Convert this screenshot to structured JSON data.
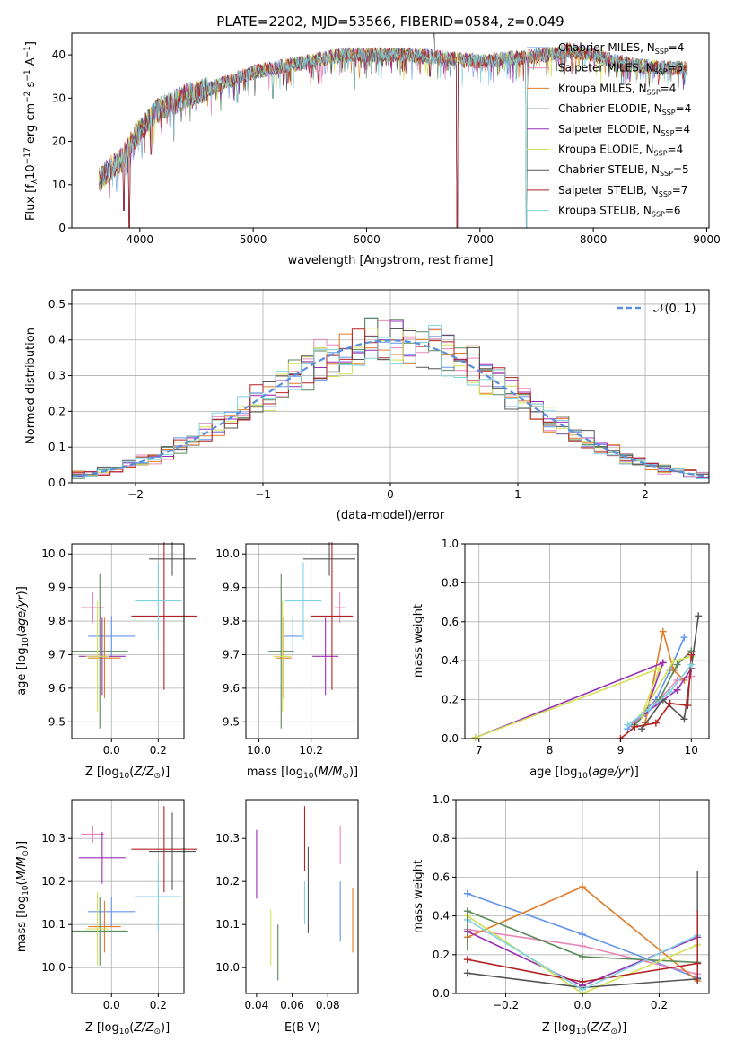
{
  "figure_title": "PLATE=2202, MJD=53566, FIBERID=0584, z=0.049",
  "colors": {
    "chabrier_miles": "#6495ED",
    "salpeter_miles": "#E986B9",
    "kroupa_miles": "#E07B27",
    "chabrier_elodie": "#5A8A5A",
    "salpeter_elodie": "#9A2FB8",
    "kroupa_elodie": "#D4E157",
    "chabrier_stelib": "#555555",
    "salpeter_stelib": "#B22222",
    "kroupa_stelib": "#7FD3E0",
    "normal_curve": "#5B8FDB",
    "grid": "#b0b0b0"
  },
  "chart_data": [
    {
      "id": "spectrum",
      "type": "line",
      "title": "PLATE=2202, MJD=53566, FIBERID=0584, z=0.049",
      "xlabel": "wavelength [Angstrom, rest frame]",
      "ylabel": "Flux [f_λ 10^-17 erg cm^-2 s^-1 A^-1]",
      "xlim": [
        3400,
        9020
      ],
      "ylim": [
        0,
        45
      ],
      "xticks": [
        "4000",
        "5000",
        "6000",
        "7000",
        "8000",
        "9000"
      ],
      "yticks": [
        "0",
        "10",
        "20",
        "30",
        "40"
      ],
      "grid": false,
      "legend_position": "top-right",
      "legend": [
        {
          "name": "Chabrier MILES",
          "ssp": "4",
          "color_key": "chabrier_miles"
        },
        {
          "name": "Salpeter MILES",
          "ssp": "5",
          "color_key": "salpeter_miles"
        },
        {
          "name": "Kroupa MILES",
          "ssp": "4",
          "color_key": "kroupa_miles"
        },
        {
          "name": "Chabrier ELODIE",
          "ssp": "4",
          "color_key": "chabrier_elodie"
        },
        {
          "name": "Salpeter ELODIE",
          "ssp": "4",
          "color_key": "salpeter_elodie"
        },
        {
          "name": "Kroupa ELODIE",
          "ssp": "4",
          "color_key": "kroupa_elodie"
        },
        {
          "name": "Chabrier STELIB",
          "ssp": "5",
          "color_key": "chabrier_stelib"
        },
        {
          "name": "Salpeter STELIB",
          "ssp": "7",
          "color_key": "salpeter_stelib"
        },
        {
          "name": "Kroupa STELIB",
          "ssp": "6",
          "color_key": "kroupa_stelib"
        }
      ],
      "continuum": [
        [
          3640,
          11
        ],
        [
          3750,
          14
        ],
        [
          3850,
          16
        ],
        [
          3950,
          21
        ],
        [
          4050,
          24
        ],
        [
          4150,
          27
        ],
        [
          4300,
          29
        ],
        [
          4450,
          31
        ],
        [
          4600,
          32
        ],
        [
          4800,
          34
        ],
        [
          5000,
          36
        ],
        [
          5200,
          37
        ],
        [
          5400,
          38
        ],
        [
          5600,
          39
        ],
        [
          5800,
          40
        ],
        [
          6000,
          40
        ],
        [
          6200,
          40
        ],
        [
          6400,
          40
        ],
        [
          6600,
          39.5
        ],
        [
          6800,
          39
        ],
        [
          7000,
          38.5
        ],
        [
          7200,
          39
        ],
        [
          7400,
          39.5
        ],
        [
          7600,
          40
        ],
        [
          7800,
          41
        ],
        [
          8000,
          40
        ],
        [
          8200,
          38.5
        ],
        [
          8400,
          37.5
        ],
        [
          8600,
          37
        ],
        [
          8800,
          37
        ],
        [
          8830,
          37
        ]
      ],
      "drops": [
        [
          3860,
          4
        ],
        [
          3905,
          0
        ],
        [
          4100,
          17
        ],
        [
          4300,
          20
        ],
        [
          4860,
          29
        ],
        [
          5175,
          30
        ],
        [
          5270,
          33
        ],
        [
          5895,
          32
        ],
        [
          6560,
          35
        ],
        [
          6800,
          0
        ],
        [
          7410,
          0
        ]
      ]
    },
    {
      "id": "residuals",
      "type": "line",
      "xlabel": "(data-model)/error",
      "ylabel": "Normed distribution",
      "xlim": [
        -2.5,
        2.5
      ],
      "ylim": [
        0,
        0.54
      ],
      "xticks": [
        "−2",
        "−1",
        "0",
        "1",
        "2"
      ],
      "yticks": [
        "0.0",
        "0.1",
        "0.2",
        "0.3",
        "0.4",
        "0.5"
      ],
      "grid": true,
      "legend_position": "top-right",
      "curve_label": "𝒩(0, 1)",
      "bin_width": 0.1,
      "bin_start": -2.5
    },
    {
      "id": "age_vs_Z",
      "type": "scatter",
      "xlabel": "Z [log10(Z/Z⊙)]",
      "ylabel": "age [log10(age/yr)]",
      "xlim": [
        -0.17,
        0.31
      ],
      "ylim": [
        9.45,
        10.03
      ],
      "xticks": [
        "0.0",
        "0.2"
      ],
      "yticks": [
        "9.5",
        "9.6",
        "9.7",
        "9.8",
        "9.9",
        "10.0"
      ],
      "grid": true,
      "points": [
        {
          "color_key": "chabrier_miles",
          "x": 0.0,
          "xerr": 0.1,
          "y": 9.755,
          "yerr": 0.06
        },
        {
          "color_key": "salpeter_miles",
          "x": -0.08,
          "xerr": 0.05,
          "y": 9.84,
          "yerr": 0.045
        },
        {
          "color_key": "kroupa_miles",
          "x": -0.03,
          "xerr": 0.07,
          "y": 9.69,
          "yerr": 0.12
        },
        {
          "color_key": "chabrier_elodie",
          "x": -0.05,
          "xerr": 0.12,
          "y": 9.71,
          "yerr": 0.23
        },
        {
          "color_key": "salpeter_elodie",
          "x": -0.04,
          "xerr": 0.1,
          "y": 9.695,
          "yerr": 0.115
        },
        {
          "color_key": "kroupa_elodie",
          "x": -0.06,
          "xerr": 0.05,
          "y": 9.695,
          "yerr": 0.165
        },
        {
          "color_key": "chabrier_stelib",
          "x": 0.26,
          "xerr": 0.1,
          "y": 9.985,
          "yerr": 0.05
        },
        {
          "color_key": "salpeter_stelib",
          "x": 0.225,
          "xerr": 0.14,
          "y": 9.815,
          "yerr": 0.22
        },
        {
          "color_key": "kroupa_stelib",
          "x": 0.2,
          "xerr": 0.1,
          "y": 9.86,
          "yerr": 0.115
        }
      ]
    },
    {
      "id": "age_vs_mass",
      "type": "scatter",
      "xlabel": "mass [log10(M/M⊙)]",
      "xlim": [
        9.95,
        10.38
      ],
      "ylim": [
        9.45,
        10.03
      ],
      "xticks": [
        "10.0",
        "10.2"
      ],
      "yticks": [
        "9.5",
        "9.6",
        "9.7",
        "9.8",
        "9.9",
        "10.0"
      ],
      "grid": true,
      "points": [
        {
          "color_key": "chabrier_miles",
          "x": 10.13,
          "xerr": 0.035,
          "y": 9.755,
          "yerr": 0.06
        },
        {
          "color_key": "salpeter_miles",
          "x": 10.31,
          "xerr": 0.02,
          "y": 9.84,
          "yerr": 0.045
        },
        {
          "color_key": "kroupa_miles",
          "x": 10.095,
          "xerr": 0.03,
          "y": 9.69,
          "yerr": 0.12
        },
        {
          "color_key": "chabrier_elodie",
          "x": 10.085,
          "xerr": 0.05,
          "y": 9.71,
          "yerr": 0.23
        },
        {
          "color_key": "salpeter_elodie",
          "x": 10.255,
          "xerr": 0.05,
          "y": 9.695,
          "yerr": 0.115
        },
        {
          "color_key": "kroupa_elodie",
          "x": 10.09,
          "xerr": 0.035,
          "y": 9.695,
          "yerr": 0.165
        },
        {
          "color_key": "chabrier_stelib",
          "x": 10.27,
          "xerr": 0.1,
          "y": 9.985,
          "yerr": 0.05
        },
        {
          "color_key": "salpeter_stelib",
          "x": 10.28,
          "xerr": 0.08,
          "y": 9.815,
          "yerr": 0.22
        },
        {
          "color_key": "kroupa_stelib",
          "x": 10.17,
          "xerr": 0.07,
          "y": 9.86,
          "yerr": 0.115
        }
      ]
    },
    {
      "id": "weight_vs_age",
      "type": "line",
      "xlabel": "age [log10(age/yr)]",
      "ylabel": "mass weight",
      "xlim": [
        6.8,
        10.25
      ],
      "ylim": [
        0,
        1
      ],
      "xticks": [
        "7",
        "8",
        "9",
        "10"
      ],
      "yticks": [
        "0.0",
        "0.2",
        "0.4",
        "0.6",
        "0.8",
        "1.0"
      ],
      "grid": true
    },
    {
      "id": "mass_vs_Z",
      "type": "scatter",
      "xlabel": "Z [log10(Z/Z⊙)]",
      "ylabel": "mass [log10(M/M⊙)]",
      "xlim": [
        -0.17,
        0.31
      ],
      "ylim": [
        9.94,
        10.39
      ],
      "xticks": [
        "0.0",
        "0.2"
      ],
      "yticks": [
        "10.0",
        "10.1",
        "10.2",
        "10.3"
      ],
      "grid": true,
      "points": [
        {
          "color_key": "chabrier_miles",
          "x": 0.0,
          "xerr": 0.1,
          "y": 10.13,
          "yerr": 0.035
        },
        {
          "color_key": "salpeter_miles",
          "x": -0.08,
          "xerr": 0.05,
          "y": 10.31,
          "yerr": 0.02
        },
        {
          "color_key": "kroupa_miles",
          "x": -0.03,
          "xerr": 0.07,
          "y": 10.095,
          "yerr": 0.06
        },
        {
          "color_key": "chabrier_elodie",
          "x": -0.05,
          "xerr": 0.12,
          "y": 10.085,
          "yerr": 0.08
        },
        {
          "color_key": "salpeter_elodie",
          "x": -0.04,
          "xerr": 0.1,
          "y": 10.255,
          "yerr": 0.06
        },
        {
          "color_key": "kroupa_elodie",
          "x": -0.06,
          "xerr": 0.05,
          "y": 10.09,
          "yerr": 0.085
        },
        {
          "color_key": "chabrier_stelib",
          "x": 0.26,
          "xerr": 0.1,
          "y": 10.27,
          "yerr": 0.09
        },
        {
          "color_key": "salpeter_stelib",
          "x": 0.225,
          "xerr": 0.14,
          "y": 10.275,
          "yerr": 0.1
        },
        {
          "color_key": "kroupa_stelib",
          "x": 0.2,
          "xerr": 0.1,
          "y": 10.165,
          "yerr": 0.08
        }
      ]
    },
    {
      "id": "mass_vs_ebv",
      "type": "scatter",
      "xlabel": "E(B-V)",
      "xlim": [
        0.034,
        0.097
      ],
      "ylim": [
        9.94,
        10.39
      ],
      "xticks": [
        "0.04",
        "0.06",
        "0.08"
      ],
      "yticks": [
        "10.0",
        "10.1",
        "10.2",
        "10.3"
      ],
      "grid": false,
      "points": [
        {
          "color_key": "chabrier_miles",
          "x": 0.087,
          "y": 10.13,
          "yerr": 0.07
        },
        {
          "color_key": "salpeter_miles",
          "x": 0.087,
          "y": 10.285,
          "yerr": 0.045
        },
        {
          "color_key": "kroupa_miles",
          "x": 0.094,
          "y": 10.11,
          "yerr": 0.075
        },
        {
          "color_key": "chabrier_elodie",
          "x": 0.052,
          "y": 10.035,
          "yerr": 0.065
        },
        {
          "color_key": "salpeter_elodie",
          "x": 0.04,
          "y": 10.24,
          "yerr": 0.08
        },
        {
          "color_key": "kroupa_elodie",
          "x": 0.048,
          "y": 10.07,
          "yerr": 0.065
        },
        {
          "color_key": "chabrier_stelib",
          "x": 0.069,
          "y": 10.18,
          "yerr": 0.1
        },
        {
          "color_key": "salpeter_stelib",
          "x": 0.067,
          "y": 10.3,
          "yerr": 0.075
        },
        {
          "color_key": "kroupa_stelib",
          "x": 0.067,
          "y": 10.15,
          "yerr": 0.05
        }
      ]
    },
    {
      "id": "weight_vs_Z",
      "type": "line",
      "xlabel": "Z [log10(Z/Z⊙)]",
      "ylabel": "mass weight",
      "xlim": [
        -0.33,
        0.33
      ],
      "ylim": [
        0,
        1
      ],
      "xticks": [
        "−0.2",
        "0.0",
        "0.2"
      ],
      "yticks": [
        "0.0",
        "0.2",
        "0.4",
        "0.6",
        "0.8",
        "1.0"
      ],
      "grid": true,
      "series": [
        {
          "color_key": "chabrier_miles",
          "x": [
            -0.3,
            0.0,
            0.3
          ],
          "y": [
            0.515,
            0.305,
            0.08
          ]
        },
        {
          "color_key": "salpeter_miles",
          "x": [
            -0.3,
            0.0,
            0.3
          ],
          "y": [
            0.33,
            0.245,
            0.1
          ]
        },
        {
          "color_key": "kroupa_miles",
          "x": [
            -0.3,
            0.0,
            0.3
          ],
          "y": [
            0.29,
            0.55,
            0.065
          ]
        },
        {
          "color_key": "chabrier_elodie",
          "x": [
            -0.3,
            0.0,
            0.3
          ],
          "y": [
            0.425,
            0.19,
            0.16
          ]
        },
        {
          "color_key": "salpeter_elodie",
          "x": [
            -0.3,
            0.0,
            0.3
          ],
          "y": [
            0.32,
            0.04,
            0.29
          ]
        },
        {
          "color_key": "kroupa_elodie",
          "x": [
            -0.3,
            0.0,
            0.3
          ],
          "y": [
            0.4,
            0.0,
            0.25
          ]
        },
        {
          "color_key": "chabrier_stelib",
          "x": [
            -0.3,
            0.0,
            0.3
          ],
          "y": [
            0.105,
            0.03,
            0.075
          ]
        },
        {
          "color_key": "salpeter_stelib",
          "x": [
            -0.3,
            0.0,
            0.3
          ],
          "y": [
            0.175,
            0.06,
            0.155
          ]
        },
        {
          "color_key": "kroupa_stelib",
          "x": [
            -0.3,
            0.0,
            0.3
          ],
          "y": [
            0.38,
            0.02,
            0.3
          ]
        }
      ]
    }
  ]
}
